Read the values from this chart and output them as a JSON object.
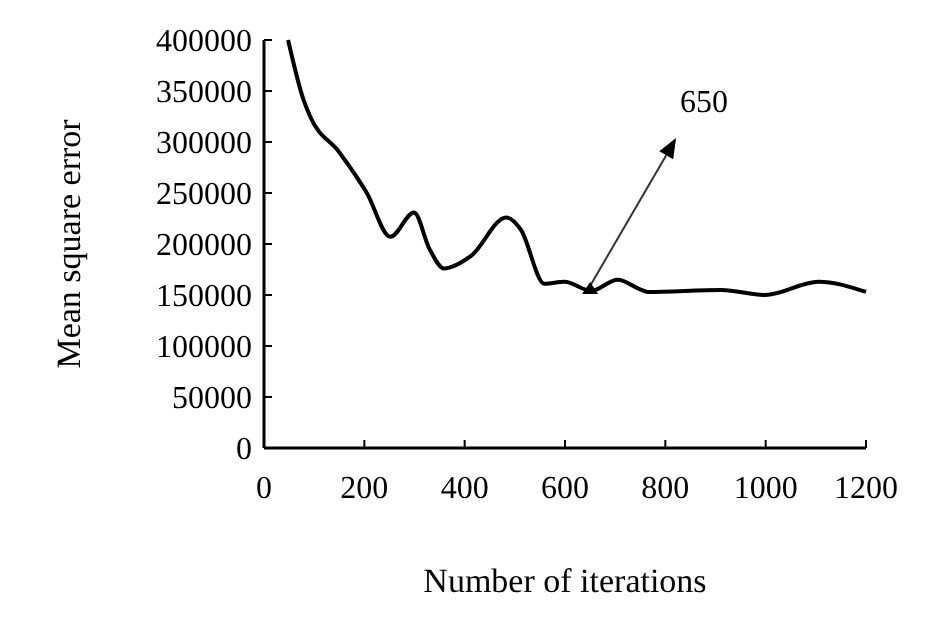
{
  "chart_data": {
    "type": "line",
    "xlabel": "Number of iterations",
    "ylabel": "Mean square error",
    "x": [
      48,
      79,
      92,
      150,
      205,
      252,
      299,
      330,
      359,
      412,
      483,
      512,
      559,
      599,
      652,
      705,
      752,
      765,
      912,
      999,
      1105,
      1200
    ],
    "series": [
      {
        "color": "#000000",
        "values": [
          400000,
          341000,
          325000,
          290000,
          250000,
          207000,
          231000,
          195000,
          176000,
          188000,
          226000,
          214000,
          161000,
          163000,
          154000,
          165000,
          155000,
          153000,
          155000,
          150000,
          163000,
          153000
        ]
      }
    ],
    "xlim": [
      0,
      1200
    ],
    "xticks": [
      0,
      200,
      400,
      600,
      800,
      1000,
      1200
    ],
    "ylim": [
      0,
      400000
    ],
    "yticks": [
      0,
      50000,
      100000,
      150000,
      200000,
      250000,
      300000,
      350000,
      400000
    ],
    "grid": false,
    "marker": "none",
    "line_style": "solid",
    "annotations": [
      {
        "text": "650",
        "x": 650,
        "y": 155000
      }
    ]
  }
}
